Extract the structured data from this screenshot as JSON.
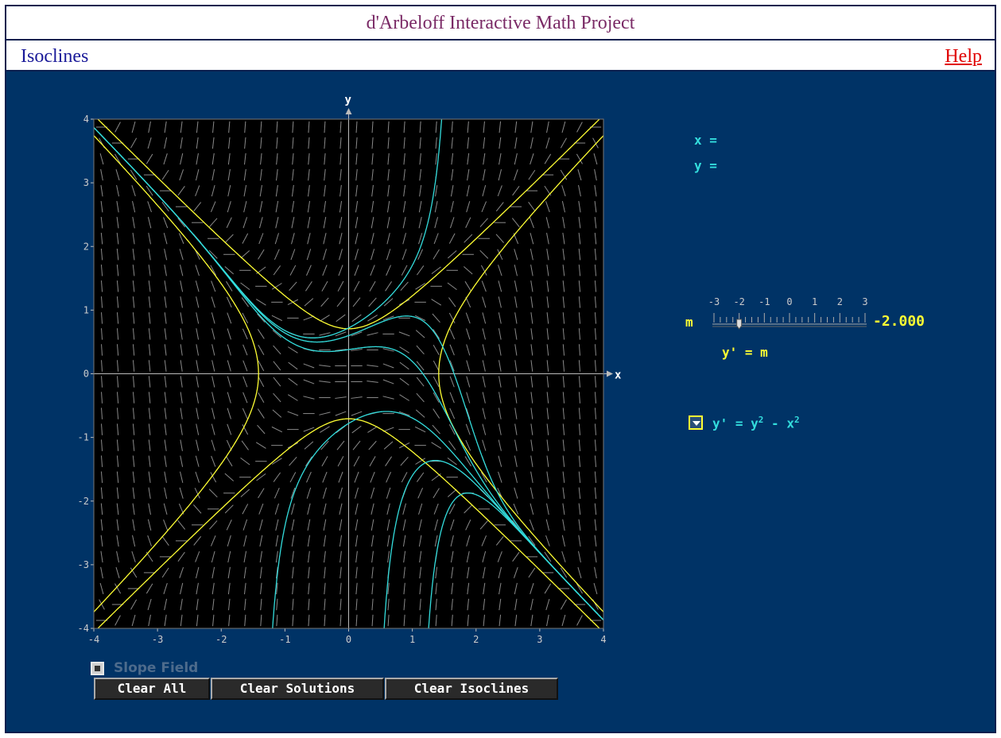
{
  "header": {
    "app_title": "d'Arbeloff Interactive Math Project",
    "page_title": "Isoclines",
    "help_label": "Help"
  },
  "readout": {
    "x_label": "x =",
    "y_label": "y ="
  },
  "slider": {
    "label": "m",
    "ticks": [
      "-3",
      "-2",
      "-1",
      "0",
      "1",
      "2",
      "3"
    ],
    "min": -3,
    "max": 3,
    "value": -2.0,
    "value_text": "-2.000",
    "formula": "y' = m"
  },
  "equation": {
    "prefix": "y' = y",
    "mid": " - x",
    "exp": "2"
  },
  "slope_field": {
    "label": "Slope Field"
  },
  "buttons": {
    "clear_all": "Clear All",
    "clear_solutions": "Clear Solutions",
    "clear_isoclines": "Clear Isoclines"
  },
  "colors": {
    "background": "#003366",
    "plot_bg": "#000000",
    "isocline": "#ffff33",
    "solution": "#33dddd",
    "slope_segment": "#8a8a8a",
    "axis": "#bbbbbb"
  },
  "chart_data": {
    "type": "scatter",
    "xlabel": "x",
    "ylabel": "y",
    "xlim": [
      -4,
      4
    ],
    "ylim": [
      -4,
      4
    ],
    "x_ticks": [
      "-4",
      "-3",
      "-2",
      "-1",
      "0",
      "1",
      "2",
      "3",
      "4"
    ],
    "y_ticks": [
      "-4",
      "-3",
      "-2",
      "-1",
      "0",
      "1",
      "2",
      "3",
      "4"
    ],
    "isoclines": [
      {
        "m": -2,
        "equation": "y^2 - x^2 = -2"
      },
      {
        "m": 0.5,
        "equation": "y^2 - x^2 = 0.5"
      }
    ],
    "solutions": [
      {
        "x0": 0,
        "y0": 0.72
      },
      {
        "x0": 0,
        "y0": 0.6
      },
      {
        "x0": 0,
        "y0": 0.38
      },
      {
        "x0": 0,
        "y0": -0.78
      },
      {
        "x0": 1.0,
        "y0": -1.6
      },
      {
        "x0": 1.5,
        "y0": -2.3
      }
    ]
  }
}
